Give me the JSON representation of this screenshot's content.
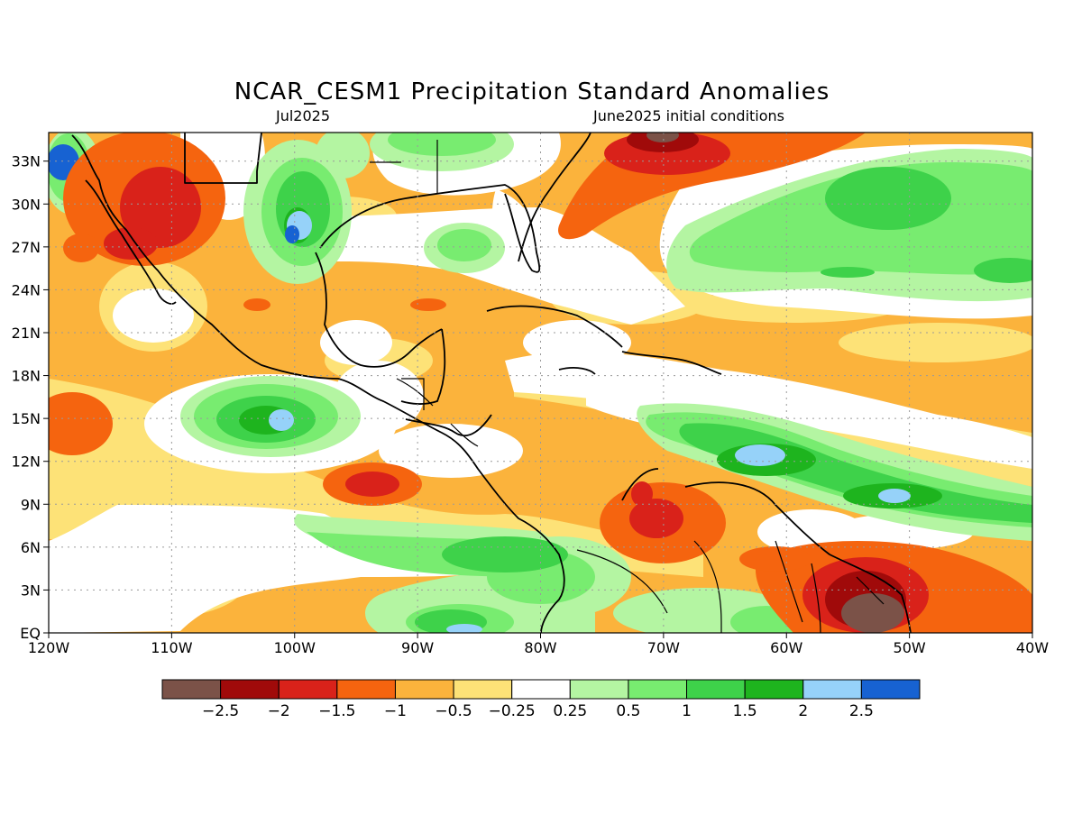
{
  "title": "NCAR_CESM1 Precipitation Standard Anomalies",
  "subtitle_left": "Jul2025",
  "subtitle_right": "June2025 initial conditions",
  "lat_labels": [
    "33N",
    "30N",
    "27N",
    "24N",
    "21N",
    "18N",
    "15N",
    "12N",
    "9N",
    "6N",
    "3N",
    "EQ"
  ],
  "lon_labels": [
    "120W",
    "110W",
    "100W",
    "90W",
    "80W",
    "70W",
    "60W",
    "50W",
    "40W"
  ],
  "map": {
    "lon_range": [
      -120,
      -40
    ],
    "lat_range": [
      0,
      35
    ]
  },
  "colorbar": {
    "colors": [
      "#7b5248",
      "#a00a0a",
      "#d9221a",
      "#f5640f",
      "#fbb33c",
      "#fde277",
      "#ffffff",
      "#b4f5a2",
      "#78ec70",
      "#3ed24a",
      "#1eb41e",
      "#96d2f9",
      "#1762d2"
    ],
    "labels": [
      "−2.5",
      "−2",
      "−1.5",
      "−1",
      "−0.5",
      "−0.25",
      "0.25",
      "0.5",
      "1",
      "1.5",
      "2",
      "2.5"
    ]
  },
  "palette": {
    "brown": "#7b5248",
    "darkred": "#a00a0a",
    "red": "#d9221a",
    "orange": "#f5640f",
    "ltorange": "#fbb33c",
    "yellow": "#fde277",
    "ltgreen": "#b4f5a2",
    "green": "#78ec70",
    "medgreen": "#3ed24a",
    "dkgreen": "#1eb41e",
    "ltblue": "#96d2f9",
    "blue": "#1762d2"
  }
}
